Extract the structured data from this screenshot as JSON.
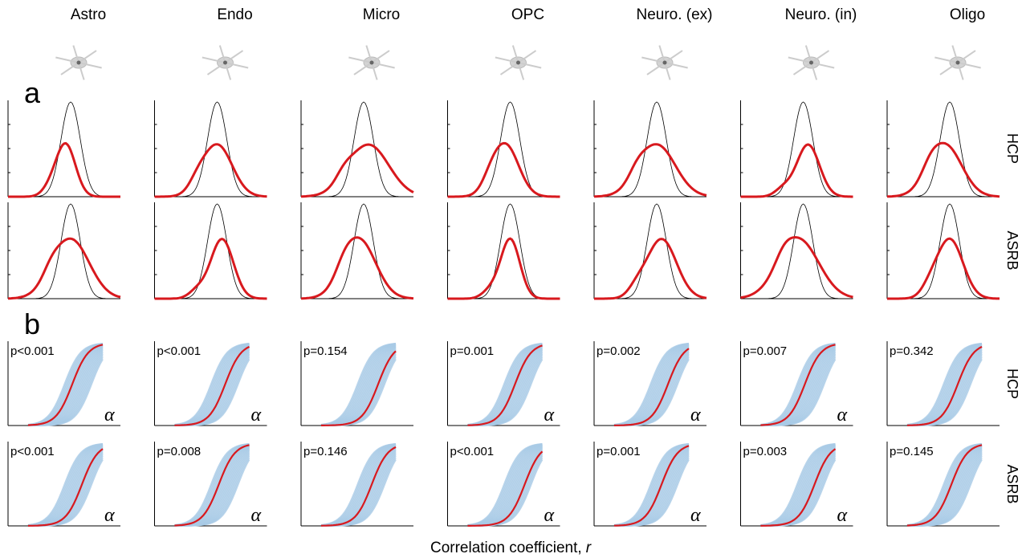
{
  "panel_labels": [
    "a",
    "b"
  ],
  "row_labels": [
    "HCP",
    "ASRB"
  ],
  "alpha_symbol": "α",
  "x_label": {
    "text": "Correlation coefficient,",
    "var": "r"
  },
  "columns": [
    {
      "name": "Astro",
      "p_hcp": "p<0.001",
      "p_asrb": "p<0.001",
      "alpha": "α"
    },
    {
      "name": "Endo",
      "p_hcp": "p<0.001",
      "p_asrb": "p=0.008",
      "alpha": "α"
    },
    {
      "name": "Micro",
      "p_hcp": "p=0.154",
      "p_asrb": "p=0.146"
    },
    {
      "name": "OPC",
      "p_hcp": "p=0.001",
      "p_asrb": "p<0.001",
      "alpha": "α"
    },
    {
      "name": "Neuro. (ex)",
      "p_hcp": "p=0.002",
      "p_asrb": "p=0.001",
      "alpha": "α"
    },
    {
      "name": "Neuro. (in)",
      "p_hcp": "p=0.007",
      "p_asrb": "p=0.003",
      "alpha": "α"
    },
    {
      "name": "Oligo",
      "p_hcp": "p=0.342",
      "p_asrb": "p=0.145"
    }
  ]
}
